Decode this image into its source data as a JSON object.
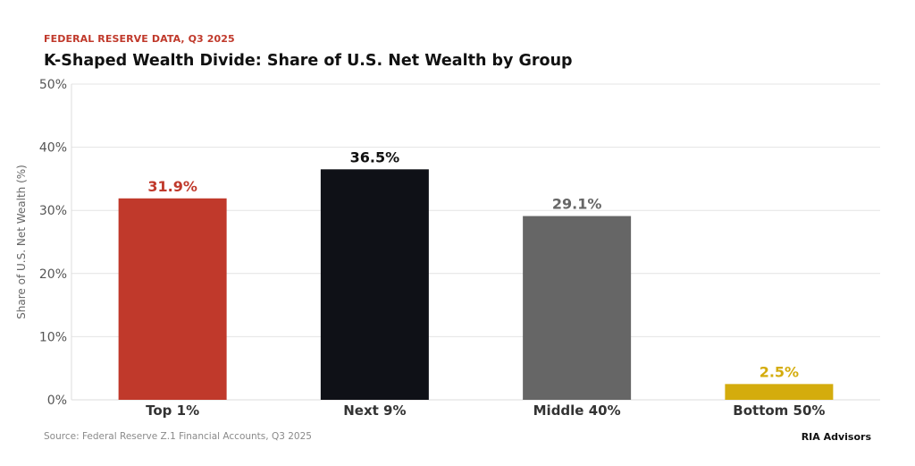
{
  "header": {
    "kicker": "FEDERAL RESERVE DATA, Q3 2025",
    "title": "K-Shaped Wealth Divide: Share of U.S. Net Wealth by Group"
  },
  "footer": {
    "source": "Source: Federal Reserve Z.1 Financial Accounts, Q3 2025",
    "brand": "RIA Advisors"
  },
  "chart_data": {
    "type": "bar",
    "title": "K-Shaped Wealth Divide: Share of U.S. Net Wealth by Group",
    "xlabel": "",
    "ylabel": "Share of U.S. Net Wealth (%)",
    "categories": [
      "Top 1%",
      "Next 9%",
      "Middle 40%",
      "Bottom 50%"
    ],
    "values": [
      31.9,
      36.5,
      29.1,
      2.5
    ],
    "value_labels": [
      "31.9%",
      "36.5%",
      "29.1%",
      "2.5%"
    ],
    "colors": [
      "#c0392b",
      "#0f1117",
      "#666666",
      "#d4ac0d"
    ],
    "label_colors": [
      "#c0392b",
      "#111111",
      "#666666",
      "#d4ac0d"
    ],
    "ylim": [
      0,
      50
    ],
    "yticks": [
      0,
      10,
      20,
      30,
      40,
      50
    ],
    "ytick_labels": [
      "0%",
      "10%",
      "20%",
      "30%",
      "40%",
      "50%"
    ],
    "grid": true,
    "legend": "none"
  }
}
